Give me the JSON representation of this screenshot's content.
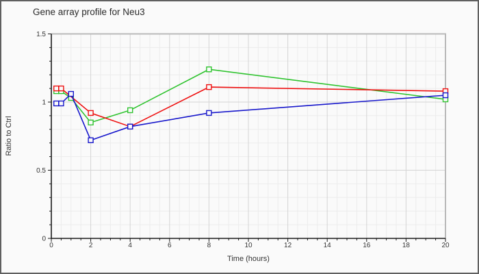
{
  "frame": {
    "background": "#fafafa",
    "border_color": "#5f5f5f"
  },
  "chart_data": {
    "type": "line",
    "title": "Gene array profile for Neu3",
    "xlabel": "Time (hours)",
    "ylabel": "Ratio to Ctrl",
    "xlim": [
      0,
      20
    ],
    "ylim": [
      0,
      1.5
    ],
    "x_tick_values": [
      0,
      2,
      4,
      6,
      8,
      10,
      12,
      14,
      16,
      18,
      20
    ],
    "x_tick_labels": [
      "0",
      "2",
      "4",
      "6",
      "8",
      "10",
      "12",
      "14",
      "16",
      "18",
      "20"
    ],
    "x_minor_step": 0.5,
    "y_tick_values": [
      0,
      0.5,
      1,
      1.5
    ],
    "y_tick_labels": [
      "0",
      "0.5",
      "1",
      "1.5"
    ],
    "y_minor_step": 0.1,
    "grid": "on",
    "legend": "none",
    "marker_style": "open-square",
    "series": [
      {
        "name": "green",
        "color": "#2fc32f",
        "x": [
          0.25,
          0.5,
          1,
          2,
          4,
          8,
          20
        ],
        "y": [
          1.08,
          1.08,
          1.03,
          0.85,
          0.94,
          1.24,
          1.02
        ]
      },
      {
        "name": "red",
        "color": "#ee0f0f",
        "x": [
          0.25,
          0.5,
          2,
          4,
          8,
          20
        ],
        "y": [
          1.1,
          1.1,
          0.92,
          0.82,
          1.11,
          1.08
        ]
      },
      {
        "name": "blue",
        "color": "#1717cb",
        "x": [
          0.25,
          0.5,
          1,
          2,
          4,
          8,
          20
        ],
        "y": [
          0.99,
          0.99,
          1.06,
          0.72,
          0.82,
          0.92,
          1.05
        ]
      }
    ]
  }
}
